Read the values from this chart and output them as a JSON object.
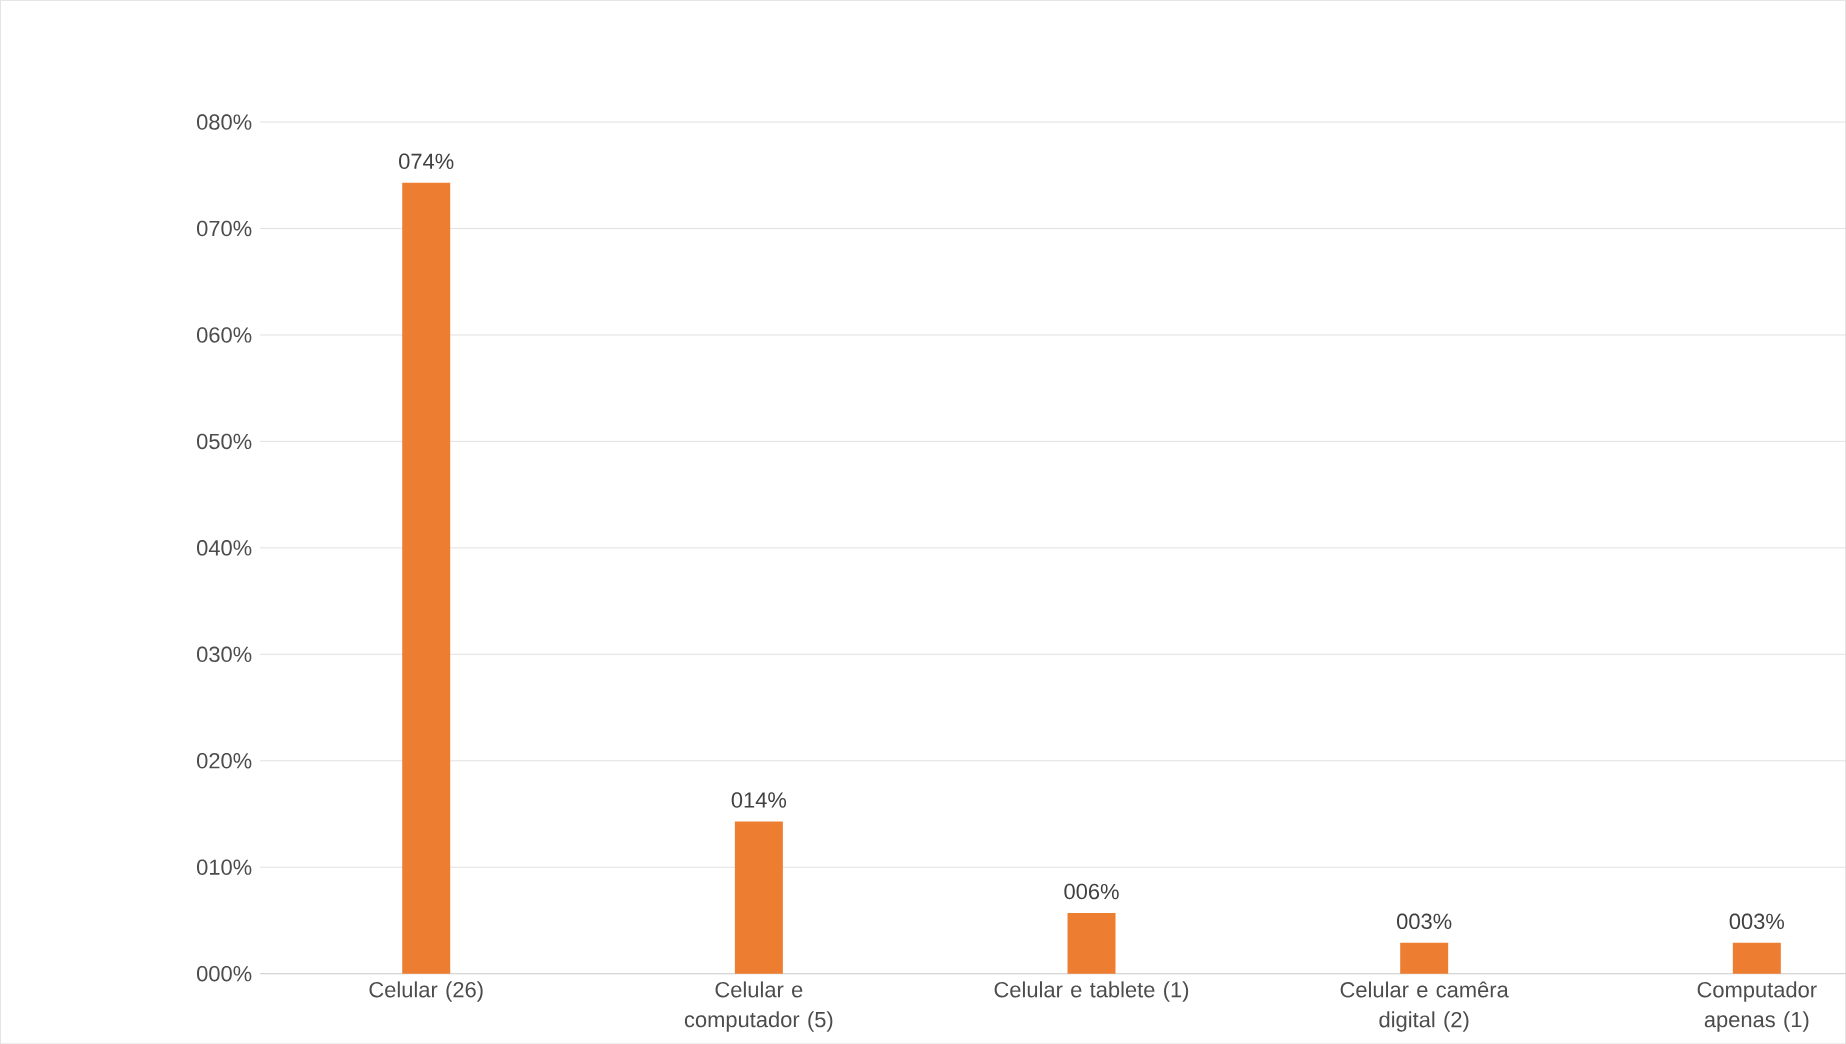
{
  "chart_data": {
    "type": "bar",
    "categories": [
      "Celular (26)",
      "Celular e computador (5)",
      "Celular e tablete (1)",
      "Celular e camêra digital (2)",
      "Computador apenas (1)"
    ],
    "values": [
      74.3,
      14.3,
      5.7,
      2.9,
      2.9
    ],
    "value_labels": [
      "074%",
      "014%",
      "006%",
      "003%",
      "003%"
    ],
    "color": "#ed7d31",
    "ylim": [
      0,
      80
    ],
    "yticks": [
      {
        "value": 0,
        "label": "000%"
      },
      {
        "value": 10,
        "label": "010%"
      },
      {
        "value": 20,
        "label": "020%"
      },
      {
        "value": 30,
        "label": "030%"
      },
      {
        "value": 40,
        "label": "040%"
      },
      {
        "value": 50,
        "label": "050%"
      },
      {
        "value": 60,
        "label": "060%"
      },
      {
        "value": 70,
        "label": "070%"
      },
      {
        "value": 80,
        "label": "080%"
      }
    ],
    "grid": "y"
  }
}
